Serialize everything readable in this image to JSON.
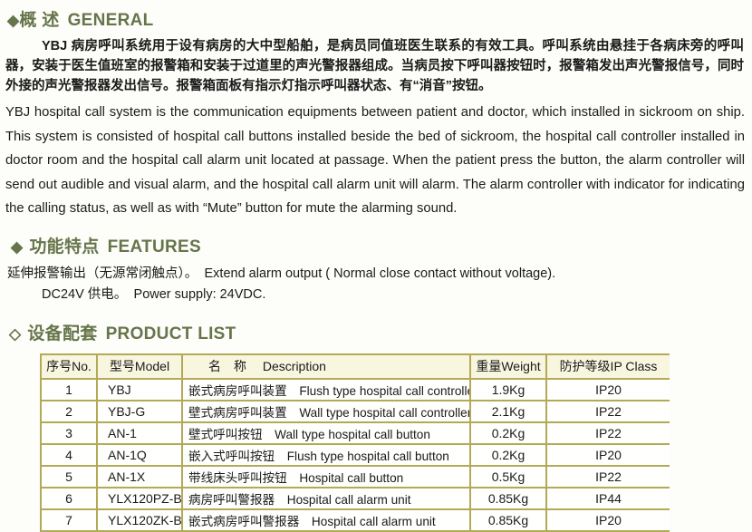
{
  "colors": {
    "heading_olive": "#66754a",
    "table_border_khaki": "#b3aa58",
    "table_header_bg": "#f9f6e0",
    "body_text": "#1a1a1a"
  },
  "sections": {
    "general": {
      "bullet": "◆",
      "title_zh": "概 述",
      "title_en": "GENERAL",
      "paragraph_zh": "YBJ 病房呼叫系统用于设有病房的大中型船舶，是病员同值班医生联系的有效工具。呼叫系统由悬挂于各病床旁的呼叫器，安装于医生值班室的报警箱和安装于过道里的声光警报器组成。当病员按下呼叫器按钮时，报警箱发出声光警报信号，同时外接的声光警报器发出信号。报警箱面板有指示灯指示呼叫器状态、有“消音”按钮。",
      "paragraph_en": "YBJ hospital call system is the communication equipments between patient and doctor, which installed in sickroom on ship. This system is consisted of hospital call buttons installed beside the bed of sickroom, the hospital call controller installed in doctor room and the hospital call alarm unit located at passage. When the patient press the button, the alarm controller will send out audible and visual alarm, and the hospital call alarm unit will alarm. The alarm controller with indicator for indicating the calling status, as well as with “Mute” button for mute the alarming sound."
    },
    "features": {
      "bullet": "◆",
      "title_zh": "功能特点",
      "title_en": "FEATURES",
      "items": [
        "延伸报警输出（无源常闭触点）。　Extend alarm output ( Normal close contact without voltage).",
        "DC24V 供电。　Power supply:  24VDC."
      ]
    },
    "product_list": {
      "bullet": "◇",
      "title_zh": "设备配套",
      "title_en": "PRODUCT LIST",
      "table": {
        "headers": [
          "序号No.",
          "型号Model",
          "名　称　 Description",
          "重量Weight",
          "防护等级IP Class"
        ],
        "rows": [
          [
            "1",
            "YBJ",
            "嵌式病房呼叫装置　Flush type hospital call controller",
            "1.9Kg",
            "IP20"
          ],
          [
            "2",
            "YBJ-G",
            "壁式病房呼叫装置　Wall type hospital call controller",
            "2.1Kg",
            "IP22"
          ],
          [
            "3",
            "AN-1",
            "壁式呼叫按钮　Wall type hospital call button",
            "0.2Kg",
            "IP22"
          ],
          [
            "4",
            "AN-1Q",
            "嵌入式呼叫按钮　Flush type hospital call button",
            "0.2Kg",
            "IP20"
          ],
          [
            "5",
            "AN-1X",
            "带线床头呼叫按钮　Hospital call button",
            "0.5Kg",
            "IP22"
          ],
          [
            "6",
            "YLX120PZ-B",
            "病房呼叫警报器　Hospital call alarm unit",
            "0.85Kg",
            "IP44"
          ],
          [
            "7",
            "YLX120ZK-B",
            "嵌式病房呼叫警报器　Hospital call alarm unit",
            "0.85Kg",
            "IP20"
          ]
        ]
      }
    }
  }
}
